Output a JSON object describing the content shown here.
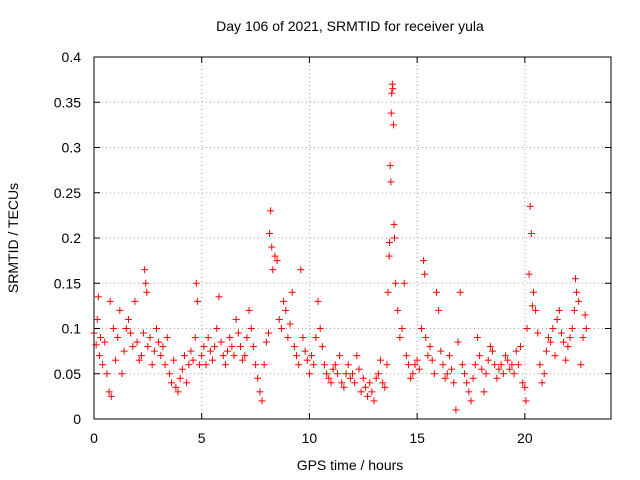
{
  "chart_data": {
    "type": "scatter",
    "title": "Day 106 of 2021, SRMTID for receiver yula",
    "xlabel": "GPS time / hours",
    "ylabel": "SRMTID / TECUs",
    "xlim": [
      0,
      24
    ],
    "ylim": [
      0,
      0.4
    ],
    "x_ticks": [
      0,
      5,
      10,
      15,
      20
    ],
    "x_tick_labels": [
      "0",
      "5",
      "10",
      "15",
      "20"
    ],
    "y_ticks": [
      0,
      0.05,
      0.1,
      0.15,
      0.2,
      0.25,
      0.3,
      0.35,
      0.4
    ],
    "y_tick_labels": [
      "0",
      "0.05",
      "0.1",
      "0.15",
      "0.2",
      "0.25",
      "0.3",
      "0.35",
      "0.4"
    ],
    "grid": true,
    "marker": "+",
    "marker_color": "#ff0000",
    "series": [
      {
        "name": "SRMTID",
        "points": [
          [
            0.0,
            0.095
          ],
          [
            0.1,
            0.082
          ],
          [
            0.15,
            0.11
          ],
          [
            0.2,
            0.135
          ],
          [
            0.25,
            0.07
          ],
          [
            0.3,
            0.09
          ],
          [
            0.4,
            0.06
          ],
          [
            0.5,
            0.085
          ],
          [
            0.6,
            0.05
          ],
          [
            0.7,
            0.03
          ],
          [
            0.75,
            0.13
          ],
          [
            0.8,
            0.025
          ],
          [
            0.9,
            0.1
          ],
          [
            1.0,
            0.065
          ],
          [
            1.1,
            0.09
          ],
          [
            1.2,
            0.12
          ],
          [
            1.3,
            0.05
          ],
          [
            1.4,
            0.075
          ],
          [
            1.5,
            0.1
          ],
          [
            1.6,
            0.11
          ],
          [
            1.7,
            0.095
          ],
          [
            1.8,
            0.08
          ],
          [
            1.9,
            0.13
          ],
          [
            2.0,
            0.085
          ],
          [
            2.1,
            0.065
          ],
          [
            2.2,
            0.07
          ],
          [
            2.3,
            0.095
          ],
          [
            2.35,
            0.165
          ],
          [
            2.4,
            0.15
          ],
          [
            2.45,
            0.14
          ],
          [
            2.5,
            0.08
          ],
          [
            2.6,
            0.09
          ],
          [
            2.7,
            0.06
          ],
          [
            2.8,
            0.075
          ],
          [
            2.9,
            0.1
          ],
          [
            3.0,
            0.085
          ],
          [
            3.1,
            0.07
          ],
          [
            3.2,
            0.08
          ],
          [
            3.3,
            0.06
          ],
          [
            3.4,
            0.09
          ],
          [
            3.5,
            0.05
          ],
          [
            3.6,
            0.04
          ],
          [
            3.7,
            0.065
          ],
          [
            3.8,
            0.035
          ],
          [
            3.9,
            0.03
          ],
          [
            4.0,
            0.045
          ],
          [
            4.1,
            0.055
          ],
          [
            4.2,
            0.07
          ],
          [
            4.3,
            0.04
          ],
          [
            4.4,
            0.06
          ],
          [
            4.5,
            0.075
          ],
          [
            4.6,
            0.065
          ],
          [
            4.7,
            0.09
          ],
          [
            4.75,
            0.15
          ],
          [
            4.8,
            0.13
          ],
          [
            4.9,
            0.06
          ],
          [
            5.0,
            0.07
          ],
          [
            5.1,
            0.08
          ],
          [
            5.2,
            0.06
          ],
          [
            5.3,
            0.09
          ],
          [
            5.4,
            0.075
          ],
          [
            5.5,
            0.065
          ],
          [
            5.6,
            0.08
          ],
          [
            5.7,
            0.1
          ],
          [
            5.8,
            0.135
          ],
          [
            5.9,
            0.085
          ],
          [
            6.0,
            0.07
          ],
          [
            6.1,
            0.06
          ],
          [
            6.2,
            0.075
          ],
          [
            6.3,
            0.09
          ],
          [
            6.4,
            0.08
          ],
          [
            6.5,
            0.07
          ],
          [
            6.6,
            0.11
          ],
          [
            6.7,
            0.095
          ],
          [
            6.8,
            0.08
          ],
          [
            6.9,
            0.065
          ],
          [
            7.0,
            0.07
          ],
          [
            7.1,
            0.09
          ],
          [
            7.2,
            0.12
          ],
          [
            7.3,
            0.1
          ],
          [
            7.4,
            0.08
          ],
          [
            7.5,
            0.06
          ],
          [
            7.6,
            0.045
          ],
          [
            7.7,
            0.03
          ],
          [
            7.8,
            0.02
          ],
          [
            7.9,
            0.06
          ],
          [
            8.0,
            0.085
          ],
          [
            8.1,
            0.095
          ],
          [
            8.15,
            0.205
          ],
          [
            8.2,
            0.23
          ],
          [
            8.25,
            0.19
          ],
          [
            8.3,
            0.165
          ],
          [
            8.4,
            0.18
          ],
          [
            8.5,
            0.175
          ],
          [
            8.6,
            0.11
          ],
          [
            8.7,
            0.1
          ],
          [
            8.8,
            0.13
          ],
          [
            8.9,
            0.12
          ],
          [
            9.0,
            0.09
          ],
          [
            9.1,
            0.105
          ],
          [
            9.2,
            0.14
          ],
          [
            9.3,
            0.08
          ],
          [
            9.4,
            0.07
          ],
          [
            9.5,
            0.06
          ],
          [
            9.6,
            0.165
          ],
          [
            9.7,
            0.09
          ],
          [
            9.8,
            0.075
          ],
          [
            9.9,
            0.065
          ],
          [
            10.0,
            0.05
          ],
          [
            10.1,
            0.07
          ],
          [
            10.2,
            0.06
          ],
          [
            10.3,
            0.09
          ],
          [
            10.4,
            0.13
          ],
          [
            10.5,
            0.1
          ],
          [
            10.6,
            0.08
          ],
          [
            10.7,
            0.06
          ],
          [
            10.8,
            0.05
          ],
          [
            10.9,
            0.045
          ],
          [
            11.0,
            0.04
          ],
          [
            11.1,
            0.055
          ],
          [
            11.2,
            0.06
          ],
          [
            11.3,
            0.05
          ],
          [
            11.4,
            0.07
          ],
          [
            11.5,
            0.04
          ],
          [
            11.6,
            0.035
          ],
          [
            11.7,
            0.05
          ],
          [
            11.8,
            0.06
          ],
          [
            11.9,
            0.045
          ],
          [
            12.0,
            0.05
          ],
          [
            12.1,
            0.04
          ],
          [
            12.2,
            0.07
          ],
          [
            12.3,
            0.055
          ],
          [
            12.4,
            0.03
          ],
          [
            12.5,
            0.045
          ],
          [
            12.6,
            0.035
          ],
          [
            12.7,
            0.025
          ],
          [
            12.8,
            0.04
          ],
          [
            12.9,
            0.03
          ],
          [
            13.0,
            0.02
          ],
          [
            13.1,
            0.045
          ],
          [
            13.2,
            0.05
          ],
          [
            13.3,
            0.065
          ],
          [
            13.4,
            0.04
          ],
          [
            13.5,
            0.035
          ],
          [
            13.6,
            0.06
          ],
          [
            13.65,
            0.14
          ],
          [
            13.7,
            0.18
          ],
          [
            13.72,
            0.195
          ],
          [
            13.75,
            0.28
          ],
          [
            13.78,
            0.262
          ],
          [
            13.8,
            0.338
          ],
          [
            13.82,
            0.36
          ],
          [
            13.85,
            0.37
          ],
          [
            13.87,
            0.365
          ],
          [
            13.9,
            0.325
          ],
          [
            13.93,
            0.215
          ],
          [
            13.95,
            0.2
          ],
          [
            14.0,
            0.15
          ],
          [
            14.1,
            0.12
          ],
          [
            14.2,
            0.09
          ],
          [
            14.3,
            0.1
          ],
          [
            14.4,
            0.15
          ],
          [
            14.5,
            0.07
          ],
          [
            14.6,
            0.06
          ],
          [
            14.7,
            0.045
          ],
          [
            14.8,
            0.05
          ],
          [
            14.9,
            0.06
          ],
          [
            15.0,
            0.065
          ],
          [
            15.1,
            0.055
          ],
          [
            15.2,
            0.1
          ],
          [
            15.3,
            0.175
          ],
          [
            15.35,
            0.16
          ],
          [
            15.4,
            0.09
          ],
          [
            15.5,
            0.07
          ],
          [
            15.6,
            0.08
          ],
          [
            15.7,
            0.065
          ],
          [
            15.8,
            0.05
          ],
          [
            15.9,
            0.14
          ],
          [
            16.0,
            0.12
          ],
          [
            16.1,
            0.075
          ],
          [
            16.2,
            0.06
          ],
          [
            16.3,
            0.045
          ],
          [
            16.4,
            0.05
          ],
          [
            16.5,
            0.07
          ],
          [
            16.6,
            0.055
          ],
          [
            16.7,
            0.04
          ],
          [
            16.8,
            0.01
          ],
          [
            16.9,
            0.085
          ],
          [
            17.0,
            0.14
          ],
          [
            17.1,
            0.06
          ],
          [
            17.2,
            0.05
          ],
          [
            17.3,
            0.04
          ],
          [
            17.4,
            0.03
          ],
          [
            17.5,
            0.02
          ],
          [
            17.6,
            0.045
          ],
          [
            17.7,
            0.06
          ],
          [
            17.8,
            0.09
          ],
          [
            17.9,
            0.07
          ],
          [
            18.0,
            0.055
          ],
          [
            18.1,
            0.03
          ],
          [
            18.2,
            0.05
          ],
          [
            18.3,
            0.065
          ],
          [
            18.4,
            0.08
          ],
          [
            18.5,
            0.075
          ],
          [
            18.6,
            0.06
          ],
          [
            18.7,
            0.045
          ],
          [
            18.8,
            0.055
          ],
          [
            18.9,
            0.06
          ],
          [
            19.0,
            0.05
          ],
          [
            19.1,
            0.07
          ],
          [
            19.2,
            0.065
          ],
          [
            19.3,
            0.055
          ],
          [
            19.4,
            0.06
          ],
          [
            19.5,
            0.05
          ],
          [
            19.6,
            0.075
          ],
          [
            19.7,
            0.06
          ],
          [
            19.8,
            0.08
          ],
          [
            19.9,
            0.04
          ],
          [
            20.0,
            0.035
          ],
          [
            20.05,
            0.02
          ],
          [
            20.1,
            0.1
          ],
          [
            20.2,
            0.16
          ],
          [
            20.25,
            0.235
          ],
          [
            20.3,
            0.205
          ],
          [
            20.35,
            0.125
          ],
          [
            20.4,
            0.14
          ],
          [
            20.5,
            0.12
          ],
          [
            20.6,
            0.095
          ],
          [
            20.7,
            0.06
          ],
          [
            20.8,
            0.04
          ],
          [
            20.9,
            0.05
          ],
          [
            21.0,
            0.075
          ],
          [
            21.1,
            0.09
          ],
          [
            21.2,
            0.085
          ],
          [
            21.3,
            0.1
          ],
          [
            21.4,
            0.07
          ],
          [
            21.5,
            0.11
          ],
          [
            21.6,
            0.12
          ],
          [
            21.7,
            0.095
          ],
          [
            21.8,
            0.085
          ],
          [
            21.9,
            0.065
          ],
          [
            22.0,
            0.08
          ],
          [
            22.1,
            0.09
          ],
          [
            22.2,
            0.1
          ],
          [
            22.3,
            0.12
          ],
          [
            22.35,
            0.155
          ],
          [
            22.4,
            0.14
          ],
          [
            22.5,
            0.13
          ],
          [
            22.6,
            0.06
          ],
          [
            22.7,
            0.09
          ],
          [
            22.8,
            0.115
          ],
          [
            22.85,
            0.1
          ]
        ]
      }
    ]
  }
}
